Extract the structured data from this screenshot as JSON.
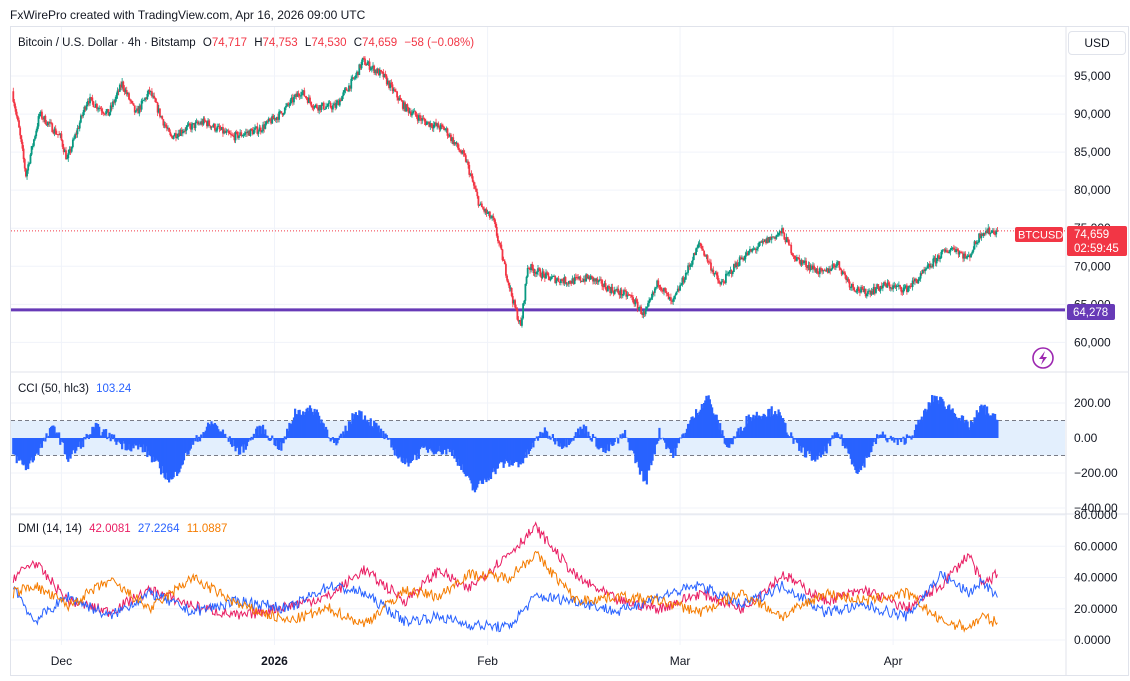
{
  "header": {
    "credit": "FxWirePro created with TradingView.com, Apr 16, 2026 09:00 UTC"
  },
  "main_legend": {
    "symbol": "Bitcoin / U.S. Dollar · 4h · Bitstamp",
    "o_label": "O",
    "o": "74,717",
    "h_label": "H",
    "h": "74,753",
    "l_label": "L",
    "l": "74,530",
    "c_label": "C",
    "c": "74,659",
    "change": "−58 (−0.08%)"
  },
  "currency_button": "USD",
  "price_badge": {
    "ticker": "BTCUSD",
    "price": "74,659",
    "countdown": "02:59:45"
  },
  "support_badge": "64,278",
  "cci_legend": {
    "name": "CCI (50, hlc3)",
    "value": "103.24"
  },
  "dmi_legend": {
    "name": "DMI (14, 14)",
    "adx": "42.0081",
    "plus_di": "27.2264",
    "minus_di": "11.0887"
  },
  "x_axis_labels": [
    "Dec",
    "2026",
    "Feb",
    "Mar",
    "Apr"
  ],
  "colors": {
    "up": "#089981",
    "down": "#f23645",
    "support_line": "#673ab7",
    "cci_fill": "#2962ff",
    "cci_band": "#e3effd",
    "adx": "#e91e63",
    "plus_di": "#2962ff",
    "minus_di": "#f57c00",
    "grid": "#f0f3fa"
  },
  "chart_data": [
    {
      "type": "candlestick",
      "title": "Bitcoin / U.S. Dollar · 4h · Bitstamp",
      "ylim": [
        57000,
        99000
      ],
      "y_ticks": [
        "95,000",
        "90,000",
        "85,000",
        "80,000",
        "75,000",
        "70,000",
        "65,000",
        "60,000"
      ],
      "last_price": 74659,
      "support_level": 64278,
      "close_path": [
        {
          "t": "2025-11-24",
          "v": 93000
        },
        {
          "t": "2025-11-25",
          "v": 88000
        },
        {
          "t": "2025-11-26",
          "v": 82000
        },
        {
          "t": "2025-11-28",
          "v": 90000
        },
        {
          "t": "2025-12-01",
          "v": 87000
        },
        {
          "t": "2025-12-02",
          "v": 84000
        },
        {
          "t": "2025-12-05",
          "v": 92000
        },
        {
          "t": "2025-12-08",
          "v": 90000
        },
        {
          "t": "2025-12-10",
          "v": 94000
        },
        {
          "t": "2025-12-12",
          "v": 90000
        },
        {
          "t": "2025-12-14",
          "v": 93000
        },
        {
          "t": "2025-12-17",
          "v": 87000
        },
        {
          "t": "2025-12-19",
          "v": 88000
        },
        {
          "t": "2025-12-22",
          "v": 89000
        },
        {
          "t": "2025-12-26",
          "v": 87000
        },
        {
          "t": "2025-12-30",
          "v": 88000
        },
        {
          "t": "2026-01-02",
          "v": 90000
        },
        {
          "t": "2026-01-05",
          "v": 93000
        },
        {
          "t": "2026-01-07",
          "v": 91000
        },
        {
          "t": "2026-01-10",
          "v": 91000
        },
        {
          "t": "2026-01-13",
          "v": 95000
        },
        {
          "t": "2026-01-14",
          "v": 97000
        },
        {
          "t": "2026-01-17",
          "v": 95000
        },
        {
          "t": "2026-01-20",
          "v": 91000
        },
        {
          "t": "2026-01-23",
          "v": 89000
        },
        {
          "t": "2026-01-26",
          "v": 88000
        },
        {
          "t": "2026-01-29",
          "v": 84000
        },
        {
          "t": "2026-01-31",
          "v": 78000
        },
        {
          "t": "2026-02-02",
          "v": 76000
        },
        {
          "t": "2026-02-05",
          "v": 65000
        },
        {
          "t": "2026-02-06",
          "v": 62000
        },
        {
          "t": "2026-02-07",
          "v": 70000
        },
        {
          "t": "2026-02-10",
          "v": 68500
        },
        {
          "t": "2026-02-13",
          "v": 68000
        },
        {
          "t": "2026-02-16",
          "v": 68500
        },
        {
          "t": "2026-02-19",
          "v": 67000
        },
        {
          "t": "2026-02-22",
          "v": 66000
        },
        {
          "t": "2026-02-24",
          "v": 63500
        },
        {
          "t": "2026-02-26",
          "v": 68000
        },
        {
          "t": "2026-02-28",
          "v": 65000
        },
        {
          "t": "2026-03-02",
          "v": 69000
        },
        {
          "t": "2026-03-04",
          "v": 73000
        },
        {
          "t": "2026-03-07",
          "v": 67500
        },
        {
          "t": "2026-03-10",
          "v": 71000
        },
        {
          "t": "2026-03-14",
          "v": 73500
        },
        {
          "t": "2026-03-16",
          "v": 74500
        },
        {
          "t": "2026-03-18",
          "v": 71000
        },
        {
          "t": "2026-03-22",
          "v": 69000
        },
        {
          "t": "2026-03-24",
          "v": 70500
        },
        {
          "t": "2026-03-26",
          "v": 67500
        },
        {
          "t": "2026-03-28",
          "v": 66500
        },
        {
          "t": "2026-03-31",
          "v": 67500
        },
        {
          "t": "2026-04-03",
          "v": 67000
        },
        {
          "t": "2026-04-05",
          "v": 68500
        },
        {
          "t": "2026-04-08",
          "v": 71500
        },
        {
          "t": "2026-04-10",
          "v": 72500
        },
        {
          "t": "2026-04-12",
          "v": 71000
        },
        {
          "t": "2026-04-14",
          "v": 74500
        },
        {
          "t": "2026-04-16",
          "v": 74659
        }
      ]
    },
    {
      "type": "bar",
      "title": "CCI (50, hlc3)",
      "ylim": [
        -400,
        300
      ],
      "y_ticks": [
        "200.00",
        "0.00",
        "−200.00",
        "−400.00"
      ],
      "bands": [
        100,
        -100
      ],
      "last_value": 103.24,
      "path": [
        {
          "t": "2025-11-24",
          "v": -100
        },
        {
          "t": "2025-11-26",
          "v": -170
        },
        {
          "t": "2025-11-30",
          "v": 70
        },
        {
          "t": "2025-12-02",
          "v": -120
        },
        {
          "t": "2025-12-06",
          "v": 60
        },
        {
          "t": "2025-12-10",
          "v": -40
        },
        {
          "t": "2025-12-13",
          "v": -60
        },
        {
          "t": "2025-12-17",
          "v": -250
        },
        {
          "t": "2025-12-20",
          "v": -40
        },
        {
          "t": "2025-12-23",
          "v": 90
        },
        {
          "t": "2025-12-27",
          "v": -80
        },
        {
          "t": "2025-12-30",
          "v": 60
        },
        {
          "t": "2026-01-02",
          "v": -60
        },
        {
          "t": "2026-01-04",
          "v": 150
        },
        {
          "t": "2026-01-07",
          "v": 160
        },
        {
          "t": "2026-01-10",
          "v": -50
        },
        {
          "t": "2026-01-13",
          "v": 160
        },
        {
          "t": "2026-01-16",
          "v": 60
        },
        {
          "t": "2026-01-20",
          "v": -150
        },
        {
          "t": "2026-01-23",
          "v": -60
        },
        {
          "t": "2026-01-27",
          "v": -80
        },
        {
          "t": "2026-01-30",
          "v": -300
        },
        {
          "t": "2026-02-03",
          "v": -150
        },
        {
          "t": "2026-02-06",
          "v": -140
        },
        {
          "t": "2026-02-09",
          "v": 40
        },
        {
          "t": "2026-02-12",
          "v": -40
        },
        {
          "t": "2026-02-15",
          "v": 60
        },
        {
          "t": "2026-02-18",
          "v": -80
        },
        {
          "t": "2026-02-21",
          "v": 20
        },
        {
          "t": "2026-02-24",
          "v": -260
        },
        {
          "t": "2026-02-26",
          "v": 30
        },
        {
          "t": "2026-02-28",
          "v": -100
        },
        {
          "t": "2026-03-02",
          "v": 60
        },
        {
          "t": "2026-03-05",
          "v": 240
        },
        {
          "t": "2026-03-08",
          "v": -60
        },
        {
          "t": "2026-03-11",
          "v": 120
        },
        {
          "t": "2026-03-15",
          "v": 160
        },
        {
          "t": "2026-03-18",
          "v": -50
        },
        {
          "t": "2026-03-21",
          "v": -130
        },
        {
          "t": "2026-03-24",
          "v": 30
        },
        {
          "t": "2026-03-27",
          "v": -200
        },
        {
          "t": "2026-03-30",
          "v": 20
        },
        {
          "t": "2026-04-02",
          "v": -30
        },
        {
          "t": "2026-04-04",
          "v": 30
        },
        {
          "t": "2026-04-07",
          "v": 240
        },
        {
          "t": "2026-04-10",
          "v": 150
        },
        {
          "t": "2026-04-12",
          "v": 60
        },
        {
          "t": "2026-04-14",
          "v": 180
        },
        {
          "t": "2026-04-16",
          "v": 103.24
        }
      ]
    },
    {
      "type": "line",
      "title": "DMI (14, 14)",
      "ylim": [
        -5,
        82
      ],
      "y_ticks": [
        "80.0000",
        "60.0000",
        "40.0000",
        "20.0000",
        "0.0000"
      ],
      "series": [
        {
          "name": "ADX",
          "last_value": 42.0081,
          "path": [
            {
              "t": "2025-11-24",
              "v": 40
            },
            {
              "t": "2025-11-27",
              "v": 50
            },
            {
              "t": "2025-12-02",
              "v": 25
            },
            {
              "t": "2025-12-08",
              "v": 18
            },
            {
              "t": "2025-12-14",
              "v": 32
            },
            {
              "t": "2025-12-20",
              "v": 22
            },
            {
              "t": "2025-12-27",
              "v": 15
            },
            {
              "t": "2026-01-03",
              "v": 22
            },
            {
              "t": "2026-01-09",
              "v": 28
            },
            {
              "t": "2026-01-14",
              "v": 45
            },
            {
              "t": "2026-01-20",
              "v": 25
            },
            {
              "t": "2026-01-25",
              "v": 45
            },
            {
              "t": "2026-01-29",
              "v": 32
            },
            {
              "t": "2026-02-04",
              "v": 55
            },
            {
              "t": "2026-02-08",
              "v": 72
            },
            {
              "t": "2026-02-14",
              "v": 40
            },
            {
              "t": "2026-02-20",
              "v": 25
            },
            {
              "t": "2026-02-26",
              "v": 20
            },
            {
              "t": "2026-03-04",
              "v": 30
            },
            {
              "t": "2026-03-10",
              "v": 20
            },
            {
              "t": "2026-03-16",
              "v": 42
            },
            {
              "t": "2026-03-22",
              "v": 25
            },
            {
              "t": "2026-03-28",
              "v": 32
            },
            {
              "t": "2026-04-03",
              "v": 20
            },
            {
              "t": "2026-04-08",
              "v": 35
            },
            {
              "t": "2026-04-12",
              "v": 55
            },
            {
              "t": "2026-04-14",
              "v": 35
            },
            {
              "t": "2026-04-16",
              "v": 42.0081
            }
          ]
        },
        {
          "name": "+DI",
          "last_value": 27.2264,
          "path": [
            {
              "t": "2025-11-24",
              "v": 35
            },
            {
              "t": "2025-11-27",
              "v": 12
            },
            {
              "t": "2025-12-02",
              "v": 28
            },
            {
              "t": "2025-12-08",
              "v": 15
            },
            {
              "t": "2025-12-14",
              "v": 30
            },
            {
              "t": "2025-12-20",
              "v": 18
            },
            {
              "t": "2025-12-27",
              "v": 25
            },
            {
              "t": "2026-01-03",
              "v": 20
            },
            {
              "t": "2026-01-09",
              "v": 35
            },
            {
              "t": "2026-01-14",
              "v": 30
            },
            {
              "t": "2026-01-20",
              "v": 12
            },
            {
              "t": "2026-01-25",
              "v": 15
            },
            {
              "t": "2026-01-29",
              "v": 10
            },
            {
              "t": "2026-02-04",
              "v": 8
            },
            {
              "t": "2026-02-08",
              "v": 28
            },
            {
              "t": "2026-02-14",
              "v": 25
            },
            {
              "t": "2026-02-20",
              "v": 18
            },
            {
              "t": "2026-02-26",
              "v": 28
            },
            {
              "t": "2026-03-04",
              "v": 35
            },
            {
              "t": "2026-03-10",
              "v": 22
            },
            {
              "t": "2026-03-16",
              "v": 35
            },
            {
              "t": "2026-03-22",
              "v": 18
            },
            {
              "t": "2026-03-28",
              "v": 22
            },
            {
              "t": "2026-04-03",
              "v": 15
            },
            {
              "t": "2026-04-08",
              "v": 42
            },
            {
              "t": "2026-04-12",
              "v": 30
            },
            {
              "t": "2026-04-14",
              "v": 38
            },
            {
              "t": "2026-04-16",
              "v": 27.2264
            }
          ]
        },
        {
          "name": "−DI",
          "last_value": 11.0887,
          "path": [
            {
              "t": "2025-11-24",
              "v": 30
            },
            {
              "t": "2025-11-27",
              "v": 35
            },
            {
              "t": "2025-12-02",
              "v": 22
            },
            {
              "t": "2025-12-08",
              "v": 38
            },
            {
              "t": "2025-12-14",
              "v": 20
            },
            {
              "t": "2025-12-20",
              "v": 40
            },
            {
              "t": "2025-12-27",
              "v": 22
            },
            {
              "t": "2026-01-03",
              "v": 12
            },
            {
              "t": "2026-01-09",
              "v": 20
            },
            {
              "t": "2026-01-14",
              "v": 10
            },
            {
              "t": "2026-01-20",
              "v": 32
            },
            {
              "t": "2026-01-25",
              "v": 28
            },
            {
              "t": "2026-01-29",
              "v": 42
            },
            {
              "t": "2026-02-04",
              "v": 40
            },
            {
              "t": "2026-02-08",
              "v": 55
            },
            {
              "t": "2026-02-14",
              "v": 25
            },
            {
              "t": "2026-02-20",
              "v": 28
            },
            {
              "t": "2026-02-26",
              "v": 25
            },
            {
              "t": "2026-03-04",
              "v": 18
            },
            {
              "t": "2026-03-10",
              "v": 30
            },
            {
              "t": "2026-03-16",
              "v": 15
            },
            {
              "t": "2026-03-22",
              "v": 30
            },
            {
              "t": "2026-03-28",
              "v": 25
            },
            {
              "t": "2026-04-03",
              "v": 30
            },
            {
              "t": "2026-04-08",
              "v": 12
            },
            {
              "t": "2026-04-12",
              "v": 8
            },
            {
              "t": "2026-04-14",
              "v": 15
            },
            {
              "t": "2026-04-16",
              "v": 11.0887
            }
          ]
        }
      ]
    }
  ]
}
